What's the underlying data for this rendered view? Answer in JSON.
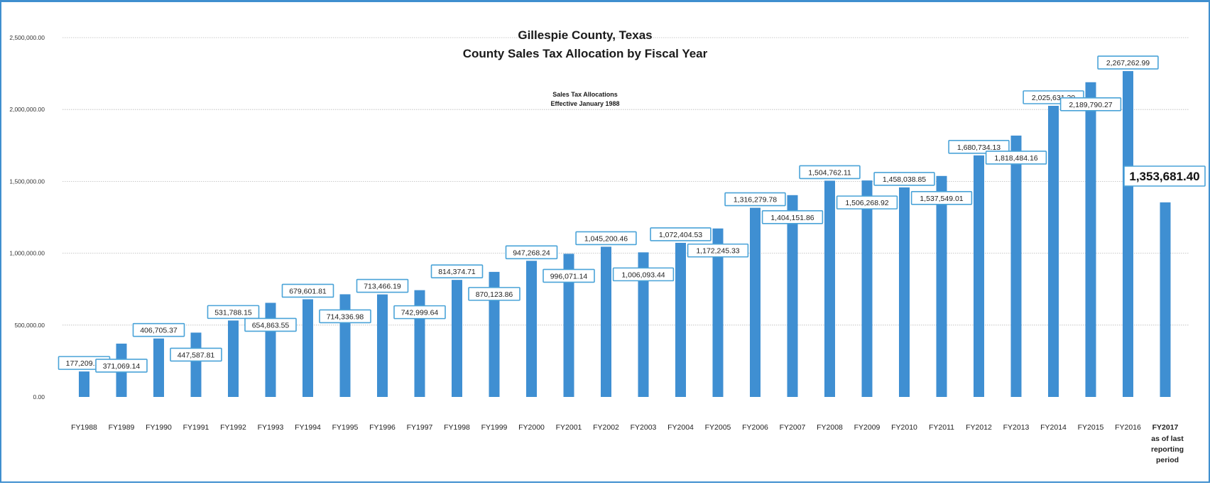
{
  "chart_data": {
    "type": "bar",
    "title": "Gillespie County, Texas",
    "subtitle": "County Sales Tax Allocation by Fiscal Year",
    "annotation_lines": [
      "Sales Tax Allocations",
      "Effective January 1988"
    ],
    "xlabel": "",
    "ylabel": "",
    "ylim": [
      0,
      2500000
    ],
    "y_ticks": [
      "0.00",
      "500,000.00",
      "1,000,000.00",
      "1,500,000.00",
      "2,000,000.00",
      "2,500,000.00"
    ],
    "grid": true,
    "bar_color": "#3f8fd2",
    "label_border_color": "#4aa3d8",
    "categories": [
      "FY1988",
      "FY1989",
      "FY1990",
      "FY1991",
      "FY1992",
      "FY1993",
      "FY1994",
      "FY1995",
      "FY1996",
      "FY1997",
      "FY1998",
      "FY1999",
      "FY2000",
      "FY2001",
      "FY2002",
      "FY2003",
      "FY2004",
      "FY2005",
      "FY2006",
      "FY2007",
      "FY2008",
      "FY2009",
      "FY2010",
      "FY2011",
      "FY2012",
      "FY2013",
      "FY2014",
      "FY2015",
      "FY2016",
      "FY2017"
    ],
    "category_sublines": [
      "as of last",
      "reporting",
      "period"
    ],
    "values": [
      177209.11,
      371069.14,
      406705.37,
      447587.81,
      531788.15,
      654863.55,
      679601.81,
      714336.98,
      713466.19,
      742999.64,
      814374.71,
      870123.86,
      947268.24,
      996071.14,
      1045200.46,
      1006093.44,
      1072404.53,
      1172245.33,
      1316279.78,
      1404151.86,
      1504762.11,
      1506268.92,
      1458038.85,
      1537549.01,
      1680734.13,
      1818484.16,
      2025631.2,
      2189790.27,
      2267262.99,
      1353681.4
    ],
    "value_labels": [
      "177,209.11",
      "371,069.14",
      "406,705.37",
      "447,587.81",
      "531,788.15",
      "654,863.55",
      "679,601.81",
      "714,336.98",
      "713,466.19",
      "742,999.64",
      "814,374.71",
      "870,123.86",
      "947,268.24",
      "996,071.14",
      "1,045,200.46",
      "1,006,093.44",
      "1,072,404.53",
      "1,172,245.33",
      "1,316,279.78",
      "1,404,151.86",
      "1,504,762.11",
      "1,506,268.92",
      "1,458,038.85",
      "1,537,549.01",
      "1,680,734.13",
      "1,818,484.16",
      "2,025,631.20",
      "2,189,790.27",
      "2,267,262.99",
      "1,353,681.40"
    ]
  }
}
